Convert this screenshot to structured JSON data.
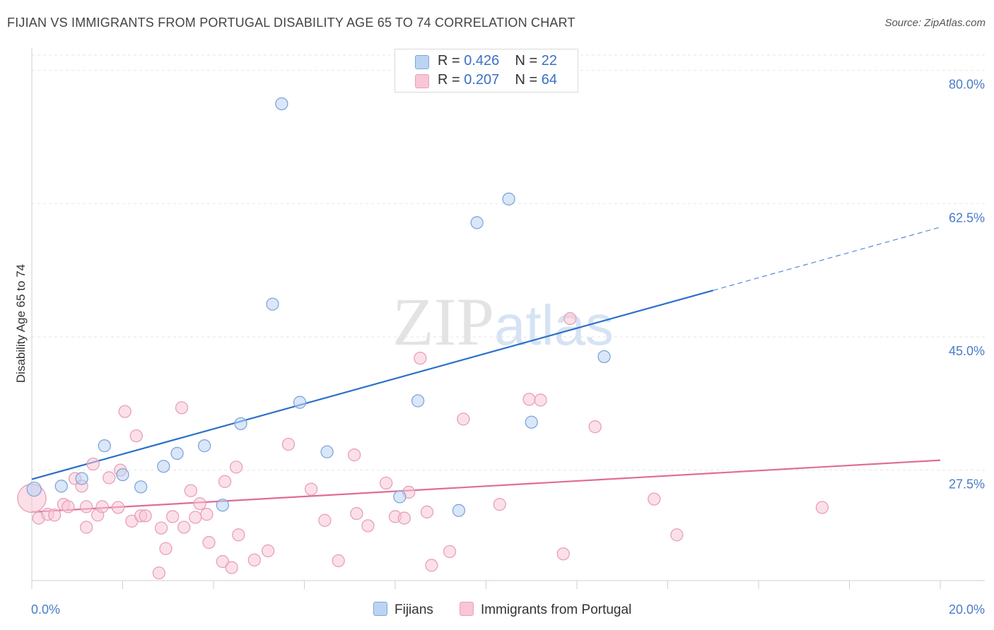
{
  "header": {
    "title": "FIJIAN VS IMMIGRANTS FROM PORTUGAL DISABILITY AGE 65 TO 74 CORRELATION CHART",
    "source": "Source: ZipAtlas.com"
  },
  "watermark": {
    "zip": "ZIP",
    "atlas": "atlas"
  },
  "legend": {
    "fijians": {
      "r_label": "R = ",
      "r_value": "0.426",
      "n_label": "N = ",
      "n_value": "22"
    },
    "portugal": {
      "r_label": "R = ",
      "r_value": "0.207",
      "n_label": "N = ",
      "n_value": "64"
    }
  },
  "bottom_legend": {
    "fijians": "Fijians",
    "portugal": "Immigrants from Portugal"
  },
  "colors": {
    "fijian_fill": "#bcd4f3",
    "fijian_stroke": "#7ea6dc",
    "fijian_line": "#2a6fcb",
    "portugal_fill": "#f8c6d6",
    "portugal_stroke": "#e8a0b8",
    "portugal_line": "#e06c98",
    "grid": "#e6e6e6",
    "axis_label": "#4a7cc7"
  },
  "chart_data": {
    "type": "scatter",
    "title": "FIJIAN VS IMMIGRANTS FROM PORTUGAL DISABILITY AGE 65 TO 74 CORRELATION CHART",
    "xlabel": "",
    "ylabel": "Disability Age 65 to 74",
    "xlim": [
      0,
      20
    ],
    "ylim": [
      13,
      82
    ],
    "x_tick_labels": [
      "0.0%",
      "20.0%"
    ],
    "y_ticks": [
      27.5,
      45.0,
      62.5,
      80.0
    ],
    "y_tick_labels": [
      "27.5%",
      "45.0%",
      "62.5%",
      "80.0%"
    ],
    "grid": true,
    "series": [
      {
        "name": "Fijians",
        "points": [
          [
            0.05,
            25.0
          ],
          [
            0.65,
            25.4
          ],
          [
            1.1,
            26.4
          ],
          [
            1.6,
            30.7
          ],
          [
            2.0,
            26.9
          ],
          [
            2.4,
            25.3
          ],
          [
            2.9,
            28.0
          ],
          [
            3.2,
            29.7
          ],
          [
            3.8,
            30.7
          ],
          [
            4.2,
            22.9
          ],
          [
            4.6,
            33.6
          ],
          [
            5.3,
            49.3
          ],
          [
            5.5,
            75.6
          ],
          [
            5.9,
            36.4
          ],
          [
            6.5,
            29.9
          ],
          [
            8.1,
            24.0
          ],
          [
            8.5,
            36.6
          ],
          [
            9.4,
            22.2
          ],
          [
            9.8,
            60.0
          ],
          [
            10.5,
            63.1
          ],
          [
            11.0,
            33.8
          ],
          [
            12.6,
            42.4
          ]
        ],
        "trend": {
          "x0": 0.0,
          "y0": 26.3,
          "x1": 15.0,
          "y1": 51.1,
          "dashed_to_x": 20.0,
          "dashed_to_y": 59.4
        }
      },
      {
        "name": "Immigrants from Portugal",
        "points": [
          [
            0.0,
            23.8
          ],
          [
            0.15,
            21.2
          ],
          [
            0.35,
            21.7
          ],
          [
            0.5,
            21.6
          ],
          [
            0.7,
            23.0
          ],
          [
            0.8,
            22.7
          ],
          [
            0.95,
            26.4
          ],
          [
            1.1,
            25.4
          ],
          [
            1.2,
            22.7
          ],
          [
            1.2,
            20.0
          ],
          [
            1.35,
            28.3
          ],
          [
            1.45,
            21.6
          ],
          [
            1.55,
            22.7
          ],
          [
            1.7,
            26.5
          ],
          [
            1.9,
            22.6
          ],
          [
            1.95,
            27.5
          ],
          [
            2.05,
            35.2
          ],
          [
            2.2,
            20.8
          ],
          [
            2.3,
            32.0
          ],
          [
            2.4,
            21.5
          ],
          [
            2.5,
            21.5
          ],
          [
            2.8,
            14.0
          ],
          [
            2.85,
            19.9
          ],
          [
            2.95,
            17.2
          ],
          [
            3.1,
            21.4
          ],
          [
            3.3,
            35.7
          ],
          [
            3.35,
            20.0
          ],
          [
            3.5,
            24.8
          ],
          [
            3.6,
            21.3
          ],
          [
            3.7,
            23.1
          ],
          [
            3.85,
            21.7
          ],
          [
            3.9,
            18.0
          ],
          [
            4.2,
            15.5
          ],
          [
            4.25,
            26.0
          ],
          [
            4.4,
            14.7
          ],
          [
            4.5,
            27.9
          ],
          [
            4.55,
            19.0
          ],
          [
            4.9,
            15.7
          ],
          [
            5.2,
            16.9
          ],
          [
            5.65,
            30.9
          ],
          [
            6.15,
            25.0
          ],
          [
            6.45,
            20.9
          ],
          [
            6.75,
            15.6
          ],
          [
            7.1,
            29.5
          ],
          [
            7.15,
            21.8
          ],
          [
            7.4,
            20.2
          ],
          [
            7.8,
            25.8
          ],
          [
            8.0,
            21.4
          ],
          [
            8.2,
            21.2
          ],
          [
            8.3,
            24.6
          ],
          [
            8.55,
            42.2
          ],
          [
            8.7,
            22.0
          ],
          [
            8.8,
            15.0
          ],
          [
            9.2,
            16.8
          ],
          [
            9.5,
            34.2
          ],
          [
            10.3,
            23.0
          ],
          [
            10.95,
            36.8
          ],
          [
            11.2,
            36.7
          ],
          [
            11.7,
            16.5
          ],
          [
            11.85,
            47.4
          ],
          [
            12.4,
            33.2
          ],
          [
            13.7,
            23.7
          ],
          [
            14.2,
            19.0
          ],
          [
            17.4,
            22.6
          ]
        ],
        "trend": {
          "x0": 0.0,
          "y0": 22.0,
          "x1": 20.0,
          "y1": 28.8
        }
      }
    ]
  }
}
